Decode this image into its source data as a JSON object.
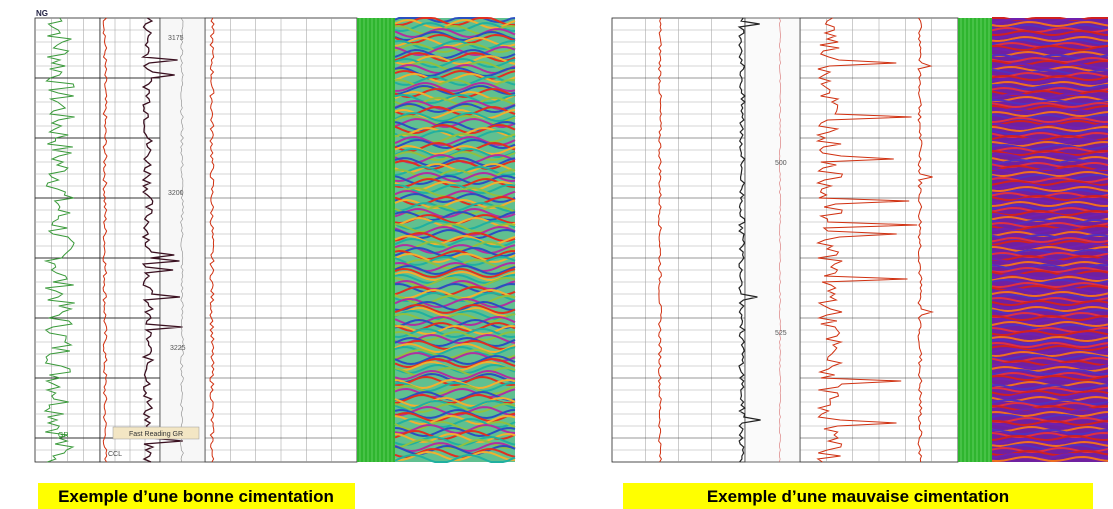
{
  "left_panel": {
    "header": "NG",
    "depth_labels": [
      "3175",
      "3200",
      "3225"
    ],
    "curve_labels": [
      "GR",
      "CCL"
    ],
    "track_label": "Fast Reading GR",
    "caption": "Exemple d’une bonne cimentation"
  },
  "right_panel": {
    "depth_labels": [
      "500",
      "525"
    ],
    "caption": "Exemple d’une mauvaise cimentation"
  }
}
